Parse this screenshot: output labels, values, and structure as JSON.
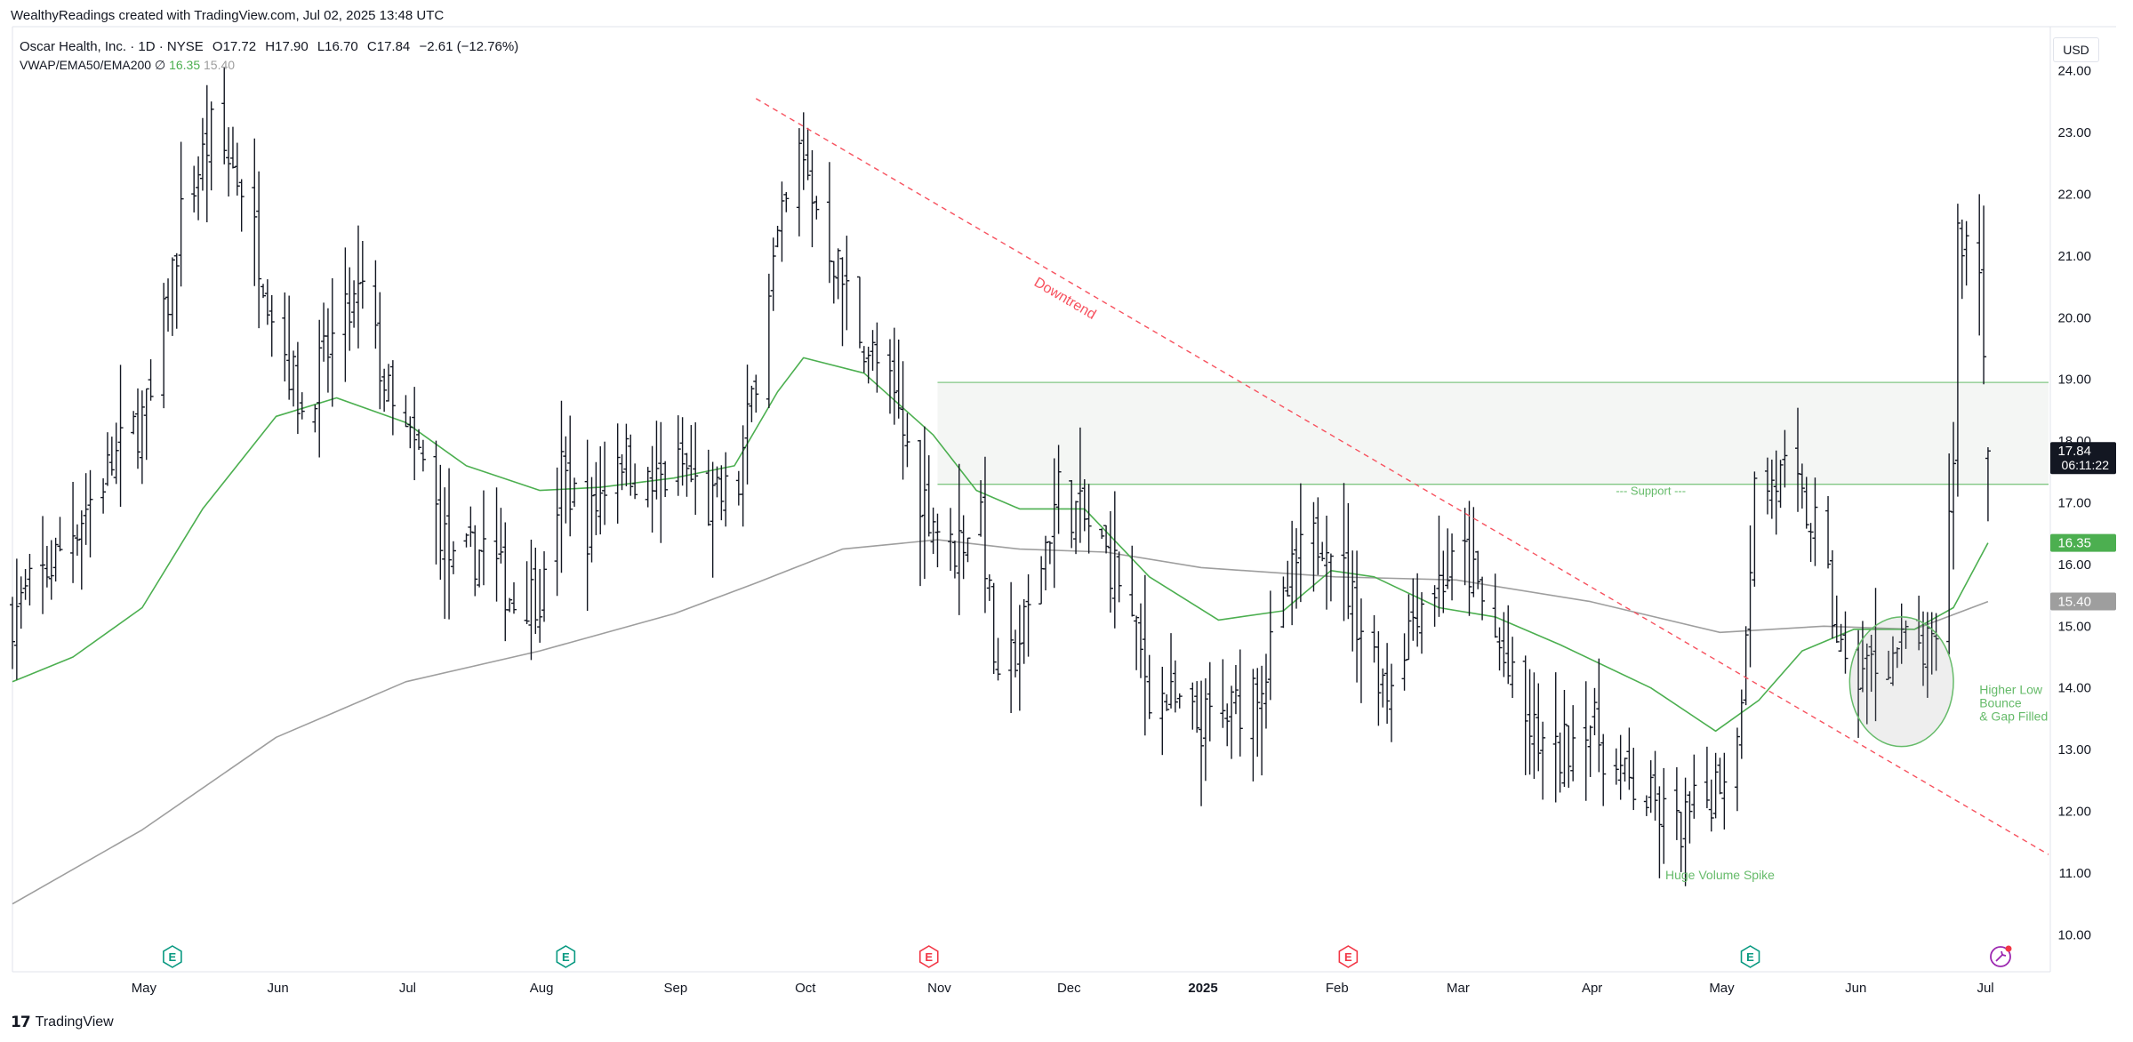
{
  "header": {
    "attribution": "WealthyReadings created with TradingView.com, Jul 02, 2025 13:48 UTC"
  },
  "legend": {
    "symbol": "Oscar Health, Inc. · 1D · NYSE",
    "open": "O17.72",
    "high": "H17.90",
    "low": "L16.70",
    "close": "C17.84",
    "change": "−2.61 (−12.76%)",
    "indicator_name": "VWAP/EMA50/EMA200",
    "indicator_symbol": "∅",
    "ema50_value": "16.35",
    "ema200_value": "15.40"
  },
  "currency": "USD",
  "footer": {
    "brand": "TradingView",
    "logo_icon": "tradingview-logo-icon"
  },
  "colors": {
    "bar": "#131722",
    "ema50": "#4caf50",
    "ema200": "#9e9e9e",
    "downtrend": "#f7525f",
    "zone_fill": "#f0f3f0",
    "zone_border": "#81c784",
    "annotation": "#66bb6a",
    "earnings_green": "#089981",
    "earnings_red": "#f23645",
    "price_tag": "#131722"
  },
  "chart_data": {
    "type": "ohlc",
    "y_axis": {
      "ticks": [
        "10.00",
        "11.00",
        "12.00",
        "13.00",
        "14.00",
        "15.00",
        "16.00",
        "17.00",
        "18.00",
        "19.00",
        "20.00",
        "21.00",
        "22.00",
        "23.00",
        "24.00"
      ],
      "range": [
        9.4,
        24.6
      ],
      "position": "right"
    },
    "x_axis": {
      "ticks": [
        {
          "label": "May",
          "date": "2024-05-01"
        },
        {
          "label": "Jun",
          "date": "2024-06-01"
        },
        {
          "label": "Jul",
          "date": "2024-07-01"
        },
        {
          "label": "Aug",
          "date": "2024-08-01"
        },
        {
          "label": "Sep",
          "date": "2024-09-01"
        },
        {
          "label": "Oct",
          "date": "2024-10-01"
        },
        {
          "label": "Nov",
          "date": "2024-11-01"
        },
        {
          "label": "Dec",
          "date": "2024-12-01"
        },
        {
          "label": "2025",
          "date": "2025-01-01",
          "bold": true
        },
        {
          "label": "Feb",
          "date": "2025-02-01"
        },
        {
          "label": "Mar",
          "date": "2025-03-01"
        },
        {
          "label": "Apr",
          "date": "2025-04-01"
        },
        {
          "label": "May",
          "date": "2025-05-01"
        },
        {
          "label": "Jun",
          "date": "2025-06-01"
        },
        {
          "label": "Jul",
          "date": "2025-07-01"
        }
      ],
      "range": [
        "2024-04-01",
        "2025-07-16"
      ]
    },
    "close_path": [
      [
        "2024-04-01",
        15.2
      ],
      [
        "2024-04-10",
        16.0
      ],
      [
        "2024-04-22",
        17.4
      ],
      [
        "2024-05-03",
        18.6
      ],
      [
        "2024-05-10",
        21.6
      ],
      [
        "2024-05-17",
        23.0
      ],
      [
        "2024-05-24",
        22.2
      ],
      [
        "2024-05-31",
        20.2
      ],
      [
        "2024-06-07",
        18.5
      ],
      [
        "2024-06-14",
        19.6
      ],
      [
        "2024-06-21",
        20.4
      ],
      [
        "2024-06-28",
        18.4
      ],
      [
        "2024-07-05",
        17.6
      ],
      [
        "2024-07-12",
        15.9
      ],
      [
        "2024-07-19",
        16.3
      ],
      [
        "2024-07-26",
        15.4
      ],
      [
        "2024-08-02",
        15.6
      ],
      [
        "2024-08-06",
        17.5
      ],
      [
        "2024-08-12",
        16.6
      ],
      [
        "2024-08-19",
        17.9
      ],
      [
        "2024-08-26",
        17.2
      ],
      [
        "2024-09-03",
        17.6
      ],
      [
        "2024-09-09",
        16.9
      ],
      [
        "2024-09-16",
        17.3
      ],
      [
        "2024-09-23",
        20.6
      ],
      [
        "2024-09-30",
        22.6
      ],
      [
        "2024-10-07",
        21.2
      ],
      [
        "2024-10-14",
        19.8
      ],
      [
        "2024-10-21",
        18.8
      ],
      [
        "2024-10-28",
        17.2
      ],
      [
        "2024-11-04",
        16.2
      ],
      [
        "2024-11-11",
        16.9
      ],
      [
        "2024-11-15",
        13.8
      ],
      [
        "2024-11-22",
        15.2
      ],
      [
        "2024-11-29",
        17.2
      ],
      [
        "2024-12-06",
        16.6
      ],
      [
        "2024-12-13",
        15.8
      ],
      [
        "2024-12-20",
        14.0
      ],
      [
        "2024-12-31",
        13.4
      ],
      [
        "2025-01-08",
        13.6
      ],
      [
        "2025-01-16",
        14.3
      ],
      [
        "2025-01-23",
        16.0
      ],
      [
        "2025-01-30",
        16.6
      ],
      [
        "2025-02-06",
        15.2
      ],
      [
        "2025-02-13",
        14.0
      ],
      [
        "2025-02-20",
        15.4
      ],
      [
        "2025-03-03",
        16.1
      ],
      [
        "2025-03-10",
        14.8
      ],
      [
        "2025-03-17",
        13.4
      ],
      [
        "2025-03-24",
        12.8
      ],
      [
        "2025-03-31",
        13.6
      ],
      [
        "2025-04-07",
        12.6
      ],
      [
        "2025-04-14",
        12.2
      ],
      [
        "2025-04-21",
        11.7
      ],
      [
        "2025-04-28",
        12.2
      ],
      [
        "2025-05-05",
        13.1
      ],
      [
        "2025-05-09",
        17.2
      ],
      [
        "2025-05-16",
        17.4
      ],
      [
        "2025-05-23",
        16.6
      ],
      [
        "2025-05-30",
        14.2
      ],
      [
        "2025-06-06",
        14.4
      ],
      [
        "2025-06-13",
        14.7
      ],
      [
        "2025-06-20",
        14.5
      ],
      [
        "2025-06-24",
        17.8
      ],
      [
        "2025-06-25",
        21.4
      ],
      [
        "2025-06-30",
        20.9
      ],
      [
        "2025-07-02",
        17.84
      ]
    ],
    "bars_note": "daily OHLC bars",
    "last_bar": {
      "date": "2025-07-02",
      "open": 17.72,
      "high": 17.9,
      "low": 16.7,
      "close": 17.84
    },
    "series": [
      {
        "name": "EMA50",
        "values": [
          [
            "2024-04-01",
            14.1
          ],
          [
            "2024-04-15",
            14.5
          ],
          [
            "2024-05-01",
            15.3
          ],
          [
            "2024-05-15",
            16.9
          ],
          [
            "2024-06-01",
            18.4
          ],
          [
            "2024-06-15",
            18.7
          ],
          [
            "2024-07-01",
            18.3
          ],
          [
            "2024-07-15",
            17.6
          ],
          [
            "2024-08-01",
            17.2
          ],
          [
            "2024-08-15",
            17.25
          ],
          [
            "2024-09-01",
            17.4
          ],
          [
            "2024-09-15",
            17.6
          ],
          [
            "2024-09-25",
            18.8
          ],
          [
            "2024-10-01",
            19.35
          ],
          [
            "2024-10-15",
            19.1
          ],
          [
            "2024-10-31",
            18.1
          ],
          [
            "2024-11-10",
            17.2
          ],
          [
            "2024-11-20",
            16.9
          ],
          [
            "2024-12-05",
            16.9
          ],
          [
            "2024-12-20",
            15.8
          ],
          [
            "2025-01-05",
            15.1
          ],
          [
            "2025-01-20",
            15.25
          ],
          [
            "2025-01-31",
            15.9
          ],
          [
            "2025-02-10",
            15.8
          ],
          [
            "2025-02-25",
            15.3
          ],
          [
            "2025-03-10",
            15.15
          ],
          [
            "2025-03-25",
            14.7
          ],
          [
            "2025-04-15",
            14.0
          ],
          [
            "2025-04-30",
            13.3
          ],
          [
            "2025-05-10",
            13.8
          ],
          [
            "2025-05-20",
            14.6
          ],
          [
            "2025-06-01",
            14.95
          ],
          [
            "2025-06-15",
            14.95
          ],
          [
            "2025-06-24",
            15.3
          ],
          [
            "2025-07-02",
            16.35
          ]
        ]
      },
      {
        "name": "EMA200",
        "values": [
          [
            "2024-04-01",
            10.5
          ],
          [
            "2024-05-01",
            11.7
          ],
          [
            "2024-06-01",
            13.2
          ],
          [
            "2024-07-01",
            14.1
          ],
          [
            "2024-08-01",
            14.6
          ],
          [
            "2024-09-01",
            15.2
          ],
          [
            "2024-09-20",
            15.7
          ],
          [
            "2024-10-10",
            16.25
          ],
          [
            "2024-11-01",
            16.4
          ],
          [
            "2024-11-20",
            16.25
          ],
          [
            "2024-12-10",
            16.2
          ],
          [
            "2025-01-01",
            15.95
          ],
          [
            "2025-02-01",
            15.8
          ],
          [
            "2025-03-01",
            15.75
          ],
          [
            "2025-04-01",
            15.4
          ],
          [
            "2025-05-01",
            14.9
          ],
          [
            "2025-05-25",
            15.0
          ],
          [
            "2025-06-15",
            14.95
          ],
          [
            "2025-07-02",
            15.4
          ]
        ]
      }
    ],
    "annotations": {
      "downtrend_label": "Downtrend",
      "downtrend_line": {
        "from": [
          "2024-09-20",
          23.55
        ],
        "to": [
          "2025-07-16",
          11.3
        ]
      },
      "support_zone": {
        "from": "2024-11-01",
        "to": "2025-07-16",
        "low": 17.3,
        "high": 18.95
      },
      "support_label": "--- Support ---",
      "volume_label": "Huge Volume Spike",
      "bounce_label_lines": [
        "Higher Low",
        "Bounce",
        "& Gap Filled"
      ],
      "bounce_circle": {
        "center": [
          "2025-06-12",
          14.1
        ],
        "radius_days": 12,
        "radius_price": 1.05
      }
    },
    "earnings_markers": [
      {
        "date": "2024-05-08",
        "color": "green",
        "label": "E"
      },
      {
        "date": "2024-08-07",
        "color": "green",
        "label": "E"
      },
      {
        "date": "2024-10-30",
        "color": "red",
        "label": "E"
      },
      {
        "date": "2025-02-04",
        "color": "red",
        "label": "E"
      },
      {
        "date": "2025-05-08",
        "color": "green",
        "label": "E"
      }
    ],
    "price_tags": [
      {
        "value": "17.84",
        "sub": "06:11:22",
        "color": "price_tag"
      },
      {
        "value": "16.35",
        "color": "ema50"
      },
      {
        "value": "15.40",
        "color": "ema200"
      }
    ],
    "grid": false
  }
}
